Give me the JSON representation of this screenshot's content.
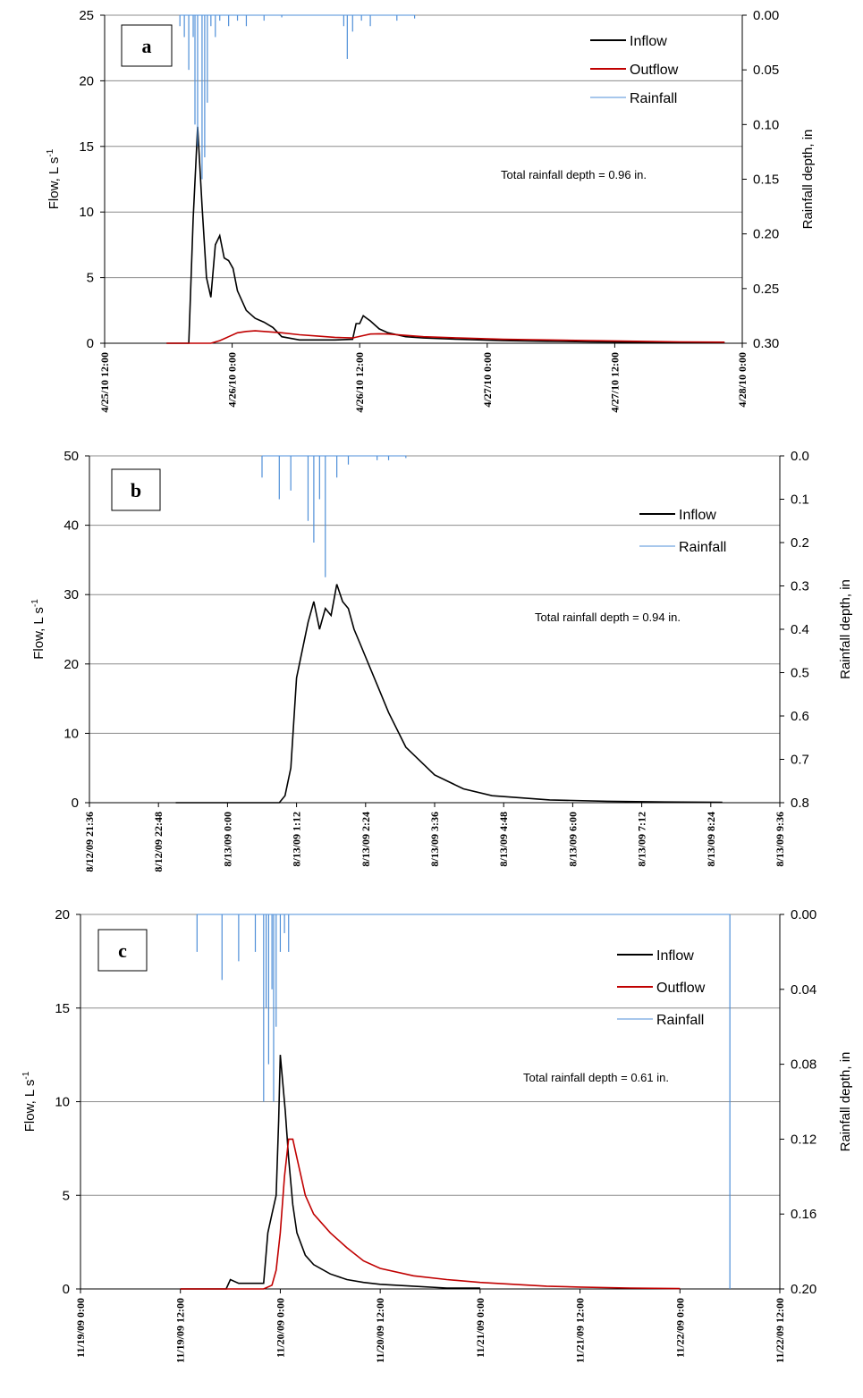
{
  "chart_data": [
    {
      "type": "line",
      "panel_label": "a",
      "ylabel": "Flow, L s",
      "ylabel_sup": "-1",
      "y2label": "Rainfall depth, in",
      "ylim": [
        0,
        25
      ],
      "y_ticks": [
        "0",
        "5",
        "10",
        "15",
        "20",
        "25"
      ],
      "y2lim": [
        0.3,
        0.0
      ],
      "y2_ticks": [
        "0.00",
        "0.05",
        "0.10",
        "0.15",
        "0.20",
        "0.25",
        "0.30"
      ],
      "xlim": [
        0,
        72
      ],
      "x_ticks": [
        "4/25/10 12:00",
        "4/26/10 0:00",
        "4/26/10 12:00",
        "4/27/10 0:00",
        "4/27/10 12:00",
        "4/28/10 0:00"
      ],
      "grid": true,
      "legend_position": "top-right",
      "annotation": "Total rainfall depth = 0.96 in.",
      "series": [
        {
          "name": "Inflow",
          "color": "#000000",
          "axis": "left",
          "x": [
            7,
            8,
            8.5,
            9,
            9.5,
            10,
            10.5,
            11,
            11.5,
            12,
            12.5,
            13,
            13.5,
            14,
            14.5,
            15,
            16,
            17,
            18,
            19,
            20,
            22,
            24,
            26,
            28,
            28.4,
            28.8,
            29.2,
            29.6,
            30,
            31,
            32,
            34,
            36,
            40,
            45,
            50,
            55,
            60,
            65,
            70
          ],
          "y": [
            0,
            0,
            0,
            0,
            0,
            9.5,
            16.5,
            10.5,
            5,
            3.5,
            7.5,
            8.2,
            6.5,
            6.3,
            5.7,
            4,
            2.5,
            1.9,
            1.6,
            1.2,
            0.5,
            0.25,
            0.25,
            0.25,
            0.3,
            1.5,
            1.5,
            2.1,
            1.9,
            1.7,
            1.1,
            0.8,
            0.5,
            0.4,
            0.3,
            0.2,
            0.15,
            0.1,
            0.08,
            0.05,
            0.05
          ]
        },
        {
          "name": "Outflow",
          "color": "#C00000",
          "axis": "left",
          "x": [
            7,
            12,
            13,
            14,
            15,
            16,
            17,
            18,
            20,
            22,
            24,
            26,
            28,
            29,
            30,
            31,
            32,
            34,
            36,
            40,
            45,
            50,
            55,
            60,
            65,
            70
          ],
          "y": [
            0,
            0,
            0.2,
            0.5,
            0.8,
            0.9,
            0.95,
            0.9,
            0.8,
            0.65,
            0.55,
            0.45,
            0.4,
            0.55,
            0.7,
            0.72,
            0.7,
            0.6,
            0.5,
            0.4,
            0.3,
            0.25,
            0.2,
            0.15,
            0.1,
            0.08
          ]
        },
        {
          "name": "Rainfall",
          "color": "#4F8FD8",
          "axis": "right",
          "x": [
            8.5,
            9,
            9.5,
            10,
            10.2,
            10.5,
            11,
            11.3,
            11.6,
            12,
            12.5,
            13,
            14,
            15,
            16,
            18,
            20,
            27,
            27.4,
            28,
            29,
            30,
            33,
            35
          ],
          "y": [
            0.01,
            0.02,
            0.05,
            0.02,
            0.1,
            0.12,
            0.15,
            0.13,
            0.08,
            0.01,
            0.02,
            0.005,
            0.01,
            0.005,
            0.01,
            0.005,
            0.002,
            0.01,
            0.04,
            0.015,
            0.005,
            0.01,
            0.005,
            0.003
          ]
        }
      ]
    },
    {
      "type": "line",
      "panel_label": "b",
      "ylabel": "Flow, L s",
      "ylabel_sup": "-1",
      "y2label": "Rainfall depth, in",
      "ylim": [
        0,
        50
      ],
      "y_ticks": [
        "0",
        "10",
        "20",
        "30",
        "40",
        "50"
      ],
      "y2lim": [
        0.8,
        0.0
      ],
      "y2_ticks": [
        "0.0",
        "0.1",
        "0.2",
        "0.3",
        "0.4",
        "0.5",
        "0.6",
        "0.7",
        "0.8"
      ],
      "xlim": [
        0,
        12
      ],
      "x_ticks": [
        "8/12/09 21:36",
        "8/12/09 22:48",
        "8/13/09 0:00",
        "8/13/09 1:12",
        "8/13/09 2:24",
        "8/13/09 3:36",
        "8/13/09 4:48",
        "8/13/09 6:00",
        "8/13/09 7:12",
        "8/13/09 8:24",
        "8/13/09 9:36"
      ],
      "grid": true,
      "legend_position": "top-right",
      "annotation": "Total rainfall depth = 0.94 in.",
      "series": [
        {
          "name": "Inflow",
          "color": "#000000",
          "axis": "left",
          "x": [
            1.5,
            2,
            2.5,
            3,
            3.3,
            3.4,
            3.5,
            3.6,
            3.8,
            3.9,
            4.0,
            4.1,
            4.2,
            4.3,
            4.4,
            4.5,
            4.6,
            4.7,
            4.8,
            5.0,
            5.2,
            5.5,
            6,
            6.5,
            7,
            8,
            9,
            10,
            11
          ],
          "y": [
            0,
            0,
            0,
            0,
            0,
            1,
            5,
            18,
            26,
            29,
            25,
            28,
            27,
            31.5,
            29,
            28,
            25,
            23,
            21,
            17,
            13,
            8,
            4,
            2,
            1,
            0.4,
            0.2,
            0.1,
            0.05
          ]
        },
        {
          "name": "Rainfall",
          "color": "#4F8FD8",
          "axis": "right",
          "x": [
            3.0,
            3.3,
            3.5,
            3.8,
            3.9,
            4.0,
            4.1,
            4.3,
            4.5,
            5.0,
            5.2,
            5.5
          ],
          "y": [
            0.05,
            0.1,
            0.08,
            0.15,
            0.2,
            0.1,
            0.28,
            0.05,
            0.02,
            0.01,
            0.01,
            0.005
          ]
        }
      ]
    },
    {
      "type": "line",
      "panel_label": "c",
      "ylabel": "Flow, L s",
      "ylabel_sup": "-1",
      "y2label": "Rainfall depth, in",
      "ylim": [
        0,
        20
      ],
      "y_ticks": [
        "0",
        "5",
        "10",
        "15",
        "20"
      ],
      "y2lim": [
        0.2,
        0.0
      ],
      "y2_ticks": [
        "0.00",
        "0.04",
        "0.08",
        "0.12",
        "0.16",
        "0.20"
      ],
      "xlim": [
        0,
        84
      ],
      "x_ticks": [
        "11/19/09 0:00",
        "11/19/09 12:00",
        "11/20/09 0:00",
        "11/20/09 12:00",
        "11/21/09 0:00",
        "11/21/09 12:00",
        "11/22/09 0:00",
        "11/22/09 12:00"
      ],
      "grid": true,
      "legend_position": "top-right",
      "annotation": "Total rainfall depth = 0.61 in.",
      "series": [
        {
          "name": "Inflow",
          "color": "#000000",
          "axis": "left",
          "x": [
            12,
            16,
            17.5,
            18,
            19,
            21,
            22,
            22.5,
            23,
            23.5,
            23.8,
            24,
            24.3,
            24.6,
            25,
            25.5,
            26,
            27,
            28,
            30,
            32,
            34,
            36,
            40,
            44,
            48
          ],
          "y": [
            0,
            0,
            0,
            0.5,
            0.3,
            0.3,
            0.3,
            3,
            4,
            5,
            9,
            12.5,
            11,
            9.5,
            7,
            4.5,
            3,
            1.8,
            1.3,
            0.8,
            0.5,
            0.35,
            0.25,
            0.15,
            0.05,
            0.05
          ]
        },
        {
          "name": "Outflow",
          "color": "#C00000",
          "axis": "left",
          "x": [
            12,
            20,
            22,
            23,
            23.5,
            24,
            24.5,
            25,
            25.5,
            26,
            27,
            28,
            30,
            32,
            34,
            36,
            40,
            44,
            48,
            52,
            56,
            60,
            66,
            72
          ],
          "y": [
            0,
            0,
            0,
            0.2,
            1,
            3,
            6,
            8,
            8,
            7,
            5,
            4,
            3,
            2.2,
            1.5,
            1.1,
            0.7,
            0.5,
            0.35,
            0.25,
            0.15,
            0.1,
            0.05,
            0.02
          ]
        },
        {
          "name": "Rainfall",
          "color": "#4F8FD8",
          "axis": "right",
          "x": [
            14,
            17,
            19,
            21,
            22,
            22.3,
            22.6,
            23,
            23.2,
            23.5,
            24,
            24.5,
            25,
            78
          ],
          "y": [
            0.02,
            0.035,
            0.025,
            0.02,
            0.1,
            0.05,
            0.08,
            0.04,
            0.1,
            0.06,
            0.02,
            0.01,
            0.02,
            0.2
          ]
        }
      ]
    }
  ]
}
